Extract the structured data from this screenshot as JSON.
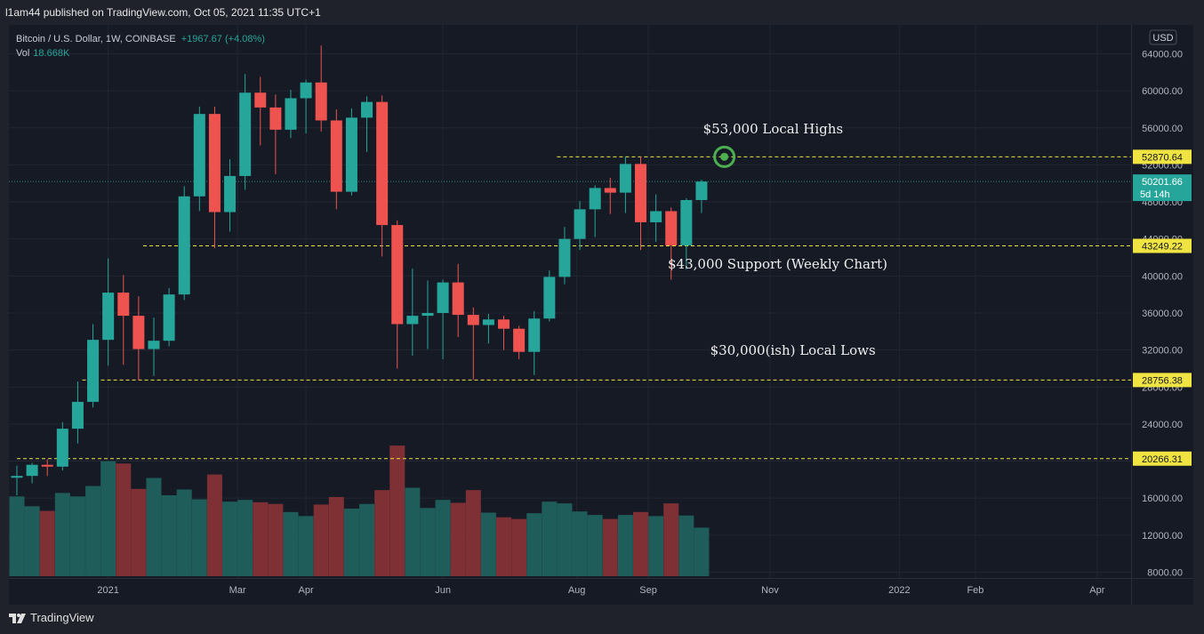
{
  "publisher_line": "l1am44 published on TradingView.com, Oct 05, 2021 11:35 UTC+1",
  "legend": {
    "symbol": "Bitcoin / U.S. Dollar, 1W, COINBASE",
    "change": "+1967.67 (+4.08%)",
    "vol_label": "Vol",
    "vol_value": "18.668K"
  },
  "currency_button": "USD",
  "footer_brand": "TradingView",
  "colors": {
    "up": "#26a69a",
    "down": "#ef5350",
    "vol_up": "#1f5d5b",
    "vol_down": "#7e3035",
    "level_line": "#f0e442",
    "background": "#161a25"
  },
  "chart_data": {
    "type": "candlestick",
    "timeframe": "1W",
    "y_range": [
      7500,
      66500
    ],
    "y_ticks": [
      8000,
      12000,
      16000,
      20000,
      24000,
      28000,
      32000,
      36000,
      40000,
      44000,
      48000,
      52000,
      56000,
      60000,
      64000
    ],
    "x_ticks": [
      {
        "label": "2021",
        "week": 6
      },
      {
        "label": "Mar",
        "week": 14.5
      },
      {
        "label": "Apr",
        "week": 19
      },
      {
        "label": "Jun",
        "week": 28
      },
      {
        "label": "Aug",
        "week": 36.8
      },
      {
        "label": "Sep",
        "week": 41.5
      },
      {
        "label": "Nov",
        "week": 49.5
      },
      {
        "label": "2022",
        "week": 58
      },
      {
        "label": "Feb",
        "week": 63
      },
      {
        "label": "Apr",
        "week": 71
      }
    ],
    "total_weeks": 72,
    "candles": [
      {
        "o": 18200,
        "h": 19500,
        "l": 16300,
        "c": 18400,
        "v": 13.8
      },
      {
        "o": 18400,
        "h": 19800,
        "l": 17600,
        "c": 19600,
        "v": 12.1
      },
      {
        "o": 19600,
        "h": 20200,
        "l": 18400,
        "c": 19400,
        "v": 11.3
      },
      {
        "o": 19400,
        "h": 24200,
        "l": 19000,
        "c": 23500,
        "v": 14.4
      },
      {
        "o": 23500,
        "h": 28600,
        "l": 21900,
        "c": 26400,
        "v": 13.8
      },
      {
        "o": 26400,
        "h": 34800,
        "l": 25800,
        "c": 33100,
        "v": 15.6
      },
      {
        "o": 33100,
        "h": 41900,
        "l": 30300,
        "c": 38200,
        "v": 19.9
      },
      {
        "o": 38200,
        "h": 40100,
        "l": 30400,
        "c": 35700,
        "v": 19.5
      },
      {
        "o": 35700,
        "h": 37800,
        "l": 28700,
        "c": 32100,
        "v": 15.1
      },
      {
        "o": 32100,
        "h": 35500,
        "l": 29200,
        "c": 33000,
        "v": 17.0
      },
      {
        "o": 33000,
        "h": 38700,
        "l": 32400,
        "c": 38000,
        "v": 14.0
      },
      {
        "o": 38000,
        "h": 49700,
        "l": 37400,
        "c": 48600,
        "v": 15.0
      },
      {
        "o": 48600,
        "h": 58300,
        "l": 47000,
        "c": 57500,
        "v": 13.3
      },
      {
        "o": 57500,
        "h": 58300,
        "l": 43000,
        "c": 46900,
        "v": 17.6
      },
      {
        "o": 46900,
        "h": 52600,
        "l": 44800,
        "c": 50800,
        "v": 12.9
      },
      {
        "o": 50800,
        "h": 61800,
        "l": 49300,
        "c": 59800,
        "v": 13.2
      },
      {
        "o": 59800,
        "h": 61500,
        "l": 54100,
        "c": 58200,
        "v": 12.8
      },
      {
        "o": 58200,
        "h": 59600,
        "l": 51000,
        "c": 55800,
        "v": 12.5
      },
      {
        "o": 55800,
        "h": 60100,
        "l": 54900,
        "c": 59200,
        "v": 11.1
      },
      {
        "o": 59200,
        "h": 61200,
        "l": 55400,
        "c": 60900,
        "v": 10.4
      },
      {
        "o": 60900,
        "h": 64900,
        "l": 55600,
        "c": 56800,
        "v": 12.4
      },
      {
        "o": 56800,
        "h": 58000,
        "l": 47200,
        "c": 49100,
        "v": 13.7
      },
      {
        "o": 49100,
        "h": 58100,
        "l": 48700,
        "c": 57100,
        "v": 11.7
      },
      {
        "o": 57100,
        "h": 59400,
        "l": 53400,
        "c": 58800,
        "v": 12.5
      },
      {
        "o": 58800,
        "h": 59500,
        "l": 42100,
        "c": 45500,
        "v": 14.9
      },
      {
        "o": 45500,
        "h": 46000,
        "l": 30000,
        "c": 34800,
        "v": 22.6
      },
      {
        "o": 34800,
        "h": 40800,
        "l": 31400,
        "c": 35700,
        "v": 15.3
      },
      {
        "o": 35700,
        "h": 39500,
        "l": 32100,
        "c": 36000,
        "v": 11.8
      },
      {
        "o": 36000,
        "h": 39600,
        "l": 31000,
        "c": 39300,
        "v": 13.2
      },
      {
        "o": 39300,
        "h": 41300,
        "l": 33400,
        "c": 35800,
        "v": 12.7
      },
      {
        "o": 35800,
        "h": 36600,
        "l": 28800,
        "c": 34700,
        "v": 14.9
      },
      {
        "o": 34700,
        "h": 35900,
        "l": 32700,
        "c": 35300,
        "v": 11.0
      },
      {
        "o": 35300,
        "h": 35700,
        "l": 32000,
        "c": 34300,
        "v": 10.2
      },
      {
        "o": 34300,
        "h": 34600,
        "l": 31000,
        "c": 31800,
        "v": 9.9
      },
      {
        "o": 31800,
        "h": 36200,
        "l": 29300,
        "c": 35400,
        "v": 10.9
      },
      {
        "o": 35400,
        "h": 40600,
        "l": 35100,
        "c": 39900,
        "v": 12.9
      },
      {
        "o": 39900,
        "h": 45300,
        "l": 39100,
        "c": 44000,
        "v": 12.6
      },
      {
        "o": 44000,
        "h": 48100,
        "l": 42800,
        "c": 47200,
        "v": 11.2
      },
      {
        "o": 47200,
        "h": 49800,
        "l": 44200,
        "c": 49500,
        "v": 10.6
      },
      {
        "o": 49500,
        "h": 50600,
        "l": 46700,
        "c": 49000,
        "v": 9.9
      },
      {
        "o": 49000,
        "h": 52900,
        "l": 46800,
        "c": 52100,
        "v": 10.6
      },
      {
        "o": 52100,
        "h": 52900,
        "l": 42800,
        "c": 45800,
        "v": 11.1
      },
      {
        "o": 45800,
        "h": 48800,
        "l": 43700,
        "c": 47000,
        "v": 10.4
      },
      {
        "o": 47000,
        "h": 47400,
        "l": 39600,
        "c": 43300,
        "v": 12.6
      },
      {
        "o": 43300,
        "h": 48400,
        "l": 40700,
        "c": 48200,
        "v": 10.5
      },
      {
        "o": 48200,
        "h": 50400,
        "l": 46800,
        "c": 50200,
        "v": 8.4
      }
    ],
    "levels": [
      {
        "value": 52870.64,
        "label": "52870.64",
        "start_week": 35.5
      },
      {
        "value": 43249.22,
        "label": "43249.22",
        "start_week": 8.3
      },
      {
        "value": 28756.38,
        "label": "28756.38",
        "start_week": 4.3
      },
      {
        "value": 20266.31,
        "label": "20266.31",
        "start_week": 0
      }
    ],
    "current_price": {
      "value": 50201.66,
      "label": "50201.66",
      "countdown": "5d 14h"
    },
    "annotations": [
      {
        "text": "$53,000 Local Highs",
        "week": 49.7,
        "price": 55400
      },
      {
        "text": "$43,000 Support (Weekly Chart)",
        "week": 50,
        "price": 40800
      },
      {
        "text": "$30,000(ish) Local Lows",
        "week": 51,
        "price": 31500
      }
    ],
    "marker": {
      "week": 46.5,
      "price": 52870.64
    }
  }
}
